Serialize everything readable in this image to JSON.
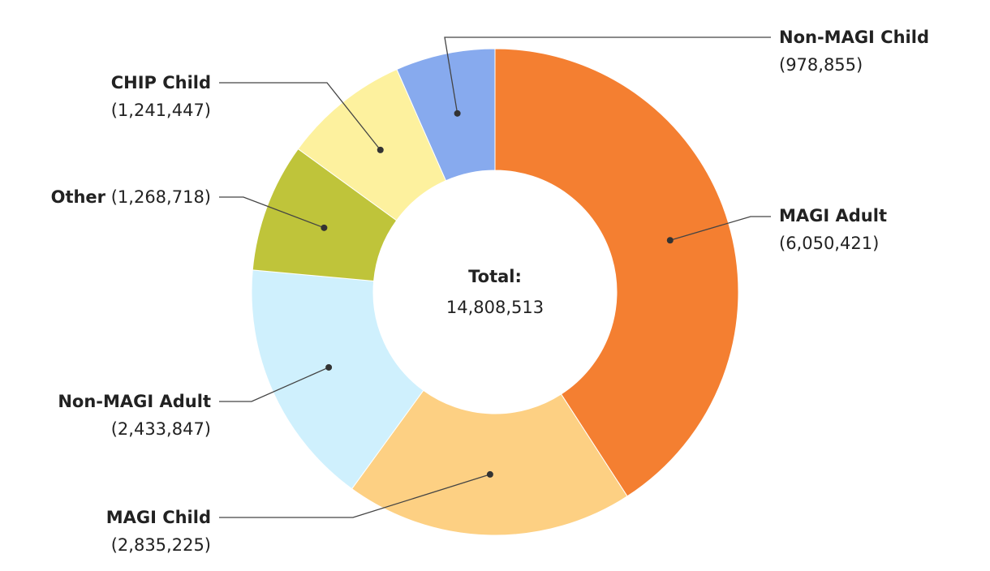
{
  "chart_data": {
    "type": "donut",
    "categories": [
      "MAGI Adult",
      "MAGI Child",
      "Non-MAGI Adult",
      "Other",
      "CHIP Child",
      "Non-MAGI Child"
    ],
    "values": [
      6050421,
      2835225,
      2433847,
      1268718,
      1241447,
      978855
    ],
    "value_labels": [
      "(6,050,421)",
      "(2,835,225)",
      "(2,433,847)",
      "(1,268,718)",
      "(1,241,447)",
      "(978,855)"
    ],
    "colors": [
      "#f47f31",
      "#fdd083",
      "#cff0fd",
      "#bfc43a",
      "#fdf19e",
      "#87aaee"
    ],
    "center_title": "Total:",
    "center_value": "14,808,513"
  }
}
